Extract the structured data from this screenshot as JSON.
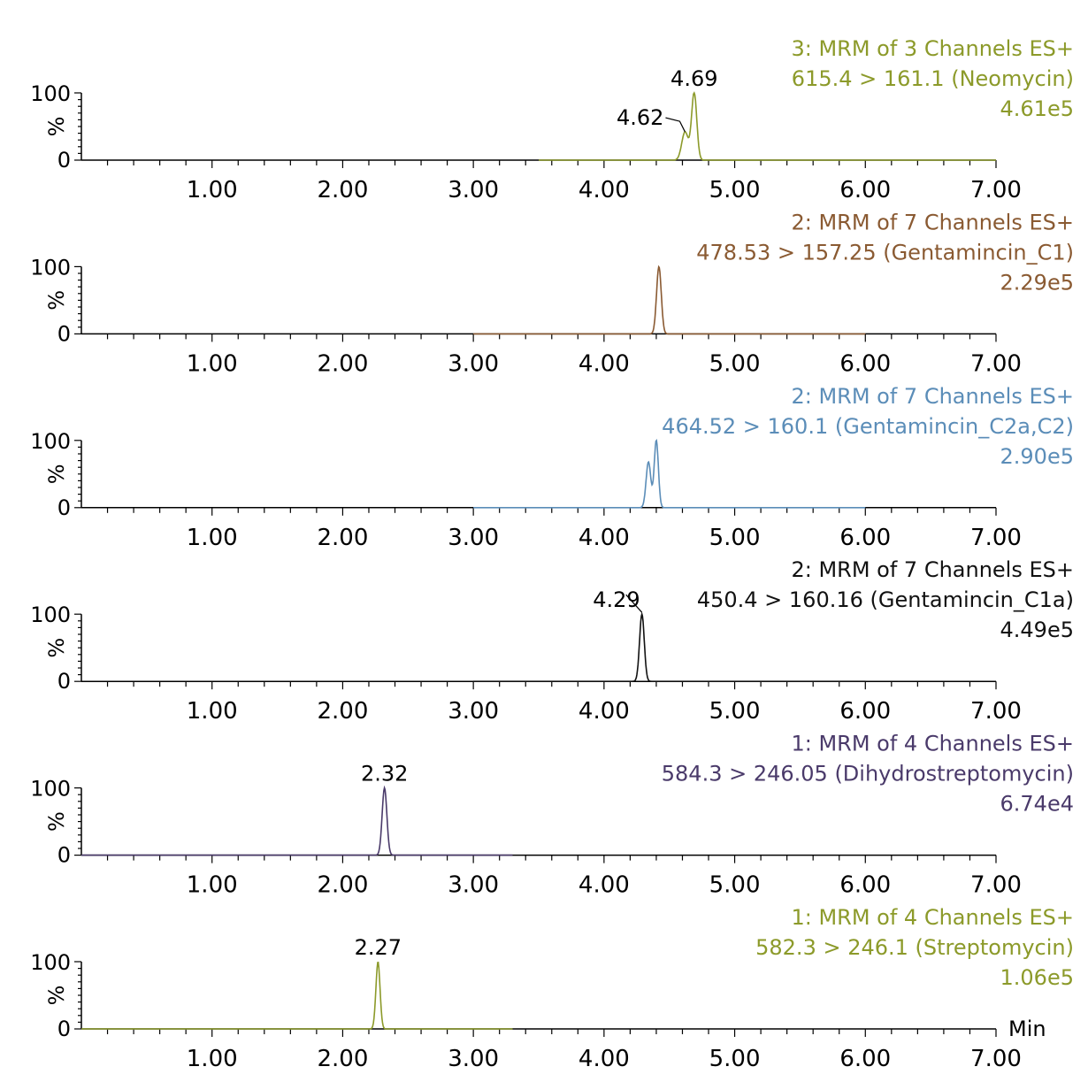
{
  "chart_data": [
    {
      "type": "line",
      "color": "#8c9a2a",
      "header": {
        "line1": "3: MRM of 3 Channels ES+",
        "line2": "615.4 > 161.1 (Neomycin)",
        "line3": "4.61e5"
      },
      "xlim": [
        0,
        7.0
      ],
      "ylim": [
        0,
        100
      ],
      "ylabel": "%",
      "xticks": [
        "1.00",
        "2.00",
        "3.00",
        "4.00",
        "5.00",
        "6.00",
        "7.00"
      ],
      "yticks": [
        "100",
        "0"
      ],
      "trace_range": [
        3.5,
        7.0
      ],
      "peaks": [
        {
          "rt": 4.62,
          "height": 42,
          "width": 0.025
        },
        {
          "rt": 4.69,
          "height": 100,
          "width": 0.02
        }
      ],
      "annotations": [
        {
          "text": "4.69",
          "rt": 4.69
        },
        {
          "text": "4.62",
          "rt": 4.62
        }
      ]
    },
    {
      "type": "line",
      "color": "#8a5a32",
      "header": {
        "line1": "2: MRM of 7 Channels ES+",
        "line2": "478.53 > 157.25 (Gentamincin_C1)",
        "line3": "2.29e5"
      },
      "xlim": [
        0,
        7.0
      ],
      "ylim": [
        0,
        100
      ],
      "ylabel": "%",
      "xticks": [
        "1.00",
        "2.00",
        "3.00",
        "4.00",
        "5.00",
        "6.00",
        "7.00"
      ],
      "yticks": [
        "100",
        "0"
      ],
      "trace_range": [
        3.0,
        6.0
      ],
      "peaks": [
        {
          "rt": 4.42,
          "height": 100,
          "width": 0.018
        }
      ],
      "annotations": []
    },
    {
      "type": "line",
      "color": "#5b8db8",
      "header": {
        "line1": "2: MRM of 7 Channels ES+",
        "line2": "464.52 > 160.1 (Gentamincin_C2a,C2)",
        "line3": "2.90e5"
      },
      "xlim": [
        0,
        7.0
      ],
      "ylim": [
        0,
        100
      ],
      "ylabel": "%",
      "xticks": [
        "1.00",
        "2.00",
        "3.00",
        "4.00",
        "5.00",
        "6.00",
        "7.00"
      ],
      "yticks": [
        "100",
        "0"
      ],
      "trace_range": [
        3.0,
        6.0
      ],
      "peaks": [
        {
          "rt": 4.34,
          "height": 68,
          "width": 0.018
        },
        {
          "rt": 4.4,
          "height": 100,
          "width": 0.016
        }
      ],
      "annotations": []
    },
    {
      "type": "line",
      "color": "#111111",
      "header": {
        "line1": "2: MRM of 7 Channels ES+",
        "line2": "450.4 > 160.16 (Gentamincin_C1a)",
        "line3": "4.49e5"
      },
      "xlim": [
        0,
        7.0
      ],
      "ylim": [
        0,
        100
      ],
      "ylabel": "%",
      "xticks": [
        "1.00",
        "2.00",
        "3.00",
        "4.00",
        "5.00",
        "6.00",
        "7.00"
      ],
      "yticks": [
        "100",
        "0"
      ],
      "trace_range": [
        3.0,
        6.0
      ],
      "peaks": [
        {
          "rt": 4.29,
          "height": 100,
          "width": 0.018
        }
      ],
      "annotations": [
        {
          "text": "4.29",
          "rt": 4.29,
          "inline": true
        }
      ]
    },
    {
      "type": "line",
      "color": "#4a3a6a",
      "header": {
        "line1": "1: MRM of 4 Channels ES+",
        "line2": "584.3 > 246.05 (Dihydrostreptomycin)",
        "line3": "6.74e4"
      },
      "xlim": [
        0,
        7.0
      ],
      "ylim": [
        0,
        100
      ],
      "ylabel": "%",
      "xticks": [
        "1.00",
        "2.00",
        "3.00",
        "4.00",
        "5.00",
        "6.00",
        "7.00"
      ],
      "yticks": [
        "100",
        "0"
      ],
      "trace_range": [
        0.0,
        3.3
      ],
      "peaks": [
        {
          "rt": 2.32,
          "height": 100,
          "width": 0.018
        }
      ],
      "annotations": [
        {
          "text": "2.32",
          "rt": 2.32
        }
      ]
    },
    {
      "type": "line",
      "color": "#8c9a2a",
      "header": {
        "line1": "1: MRM of 4 Channels ES+",
        "line2": "582.3 > 246.1 (Streptomycin)",
        "line3": "1.06e5"
      },
      "xlim": [
        0,
        7.0
      ],
      "ylim": [
        0,
        100
      ],
      "ylabel": "%",
      "xticks": [
        "1.00",
        "2.00",
        "3.00",
        "4.00",
        "5.00",
        "6.00",
        "7.00"
      ],
      "yticks": [
        "100",
        "0"
      ],
      "xunit": "Min",
      "trace_range": [
        0.0,
        3.3
      ],
      "peaks": [
        {
          "rt": 2.27,
          "height": 100,
          "width": 0.016
        }
      ],
      "annotations": [
        {
          "text": "2.27",
          "rt": 2.27
        }
      ]
    }
  ]
}
